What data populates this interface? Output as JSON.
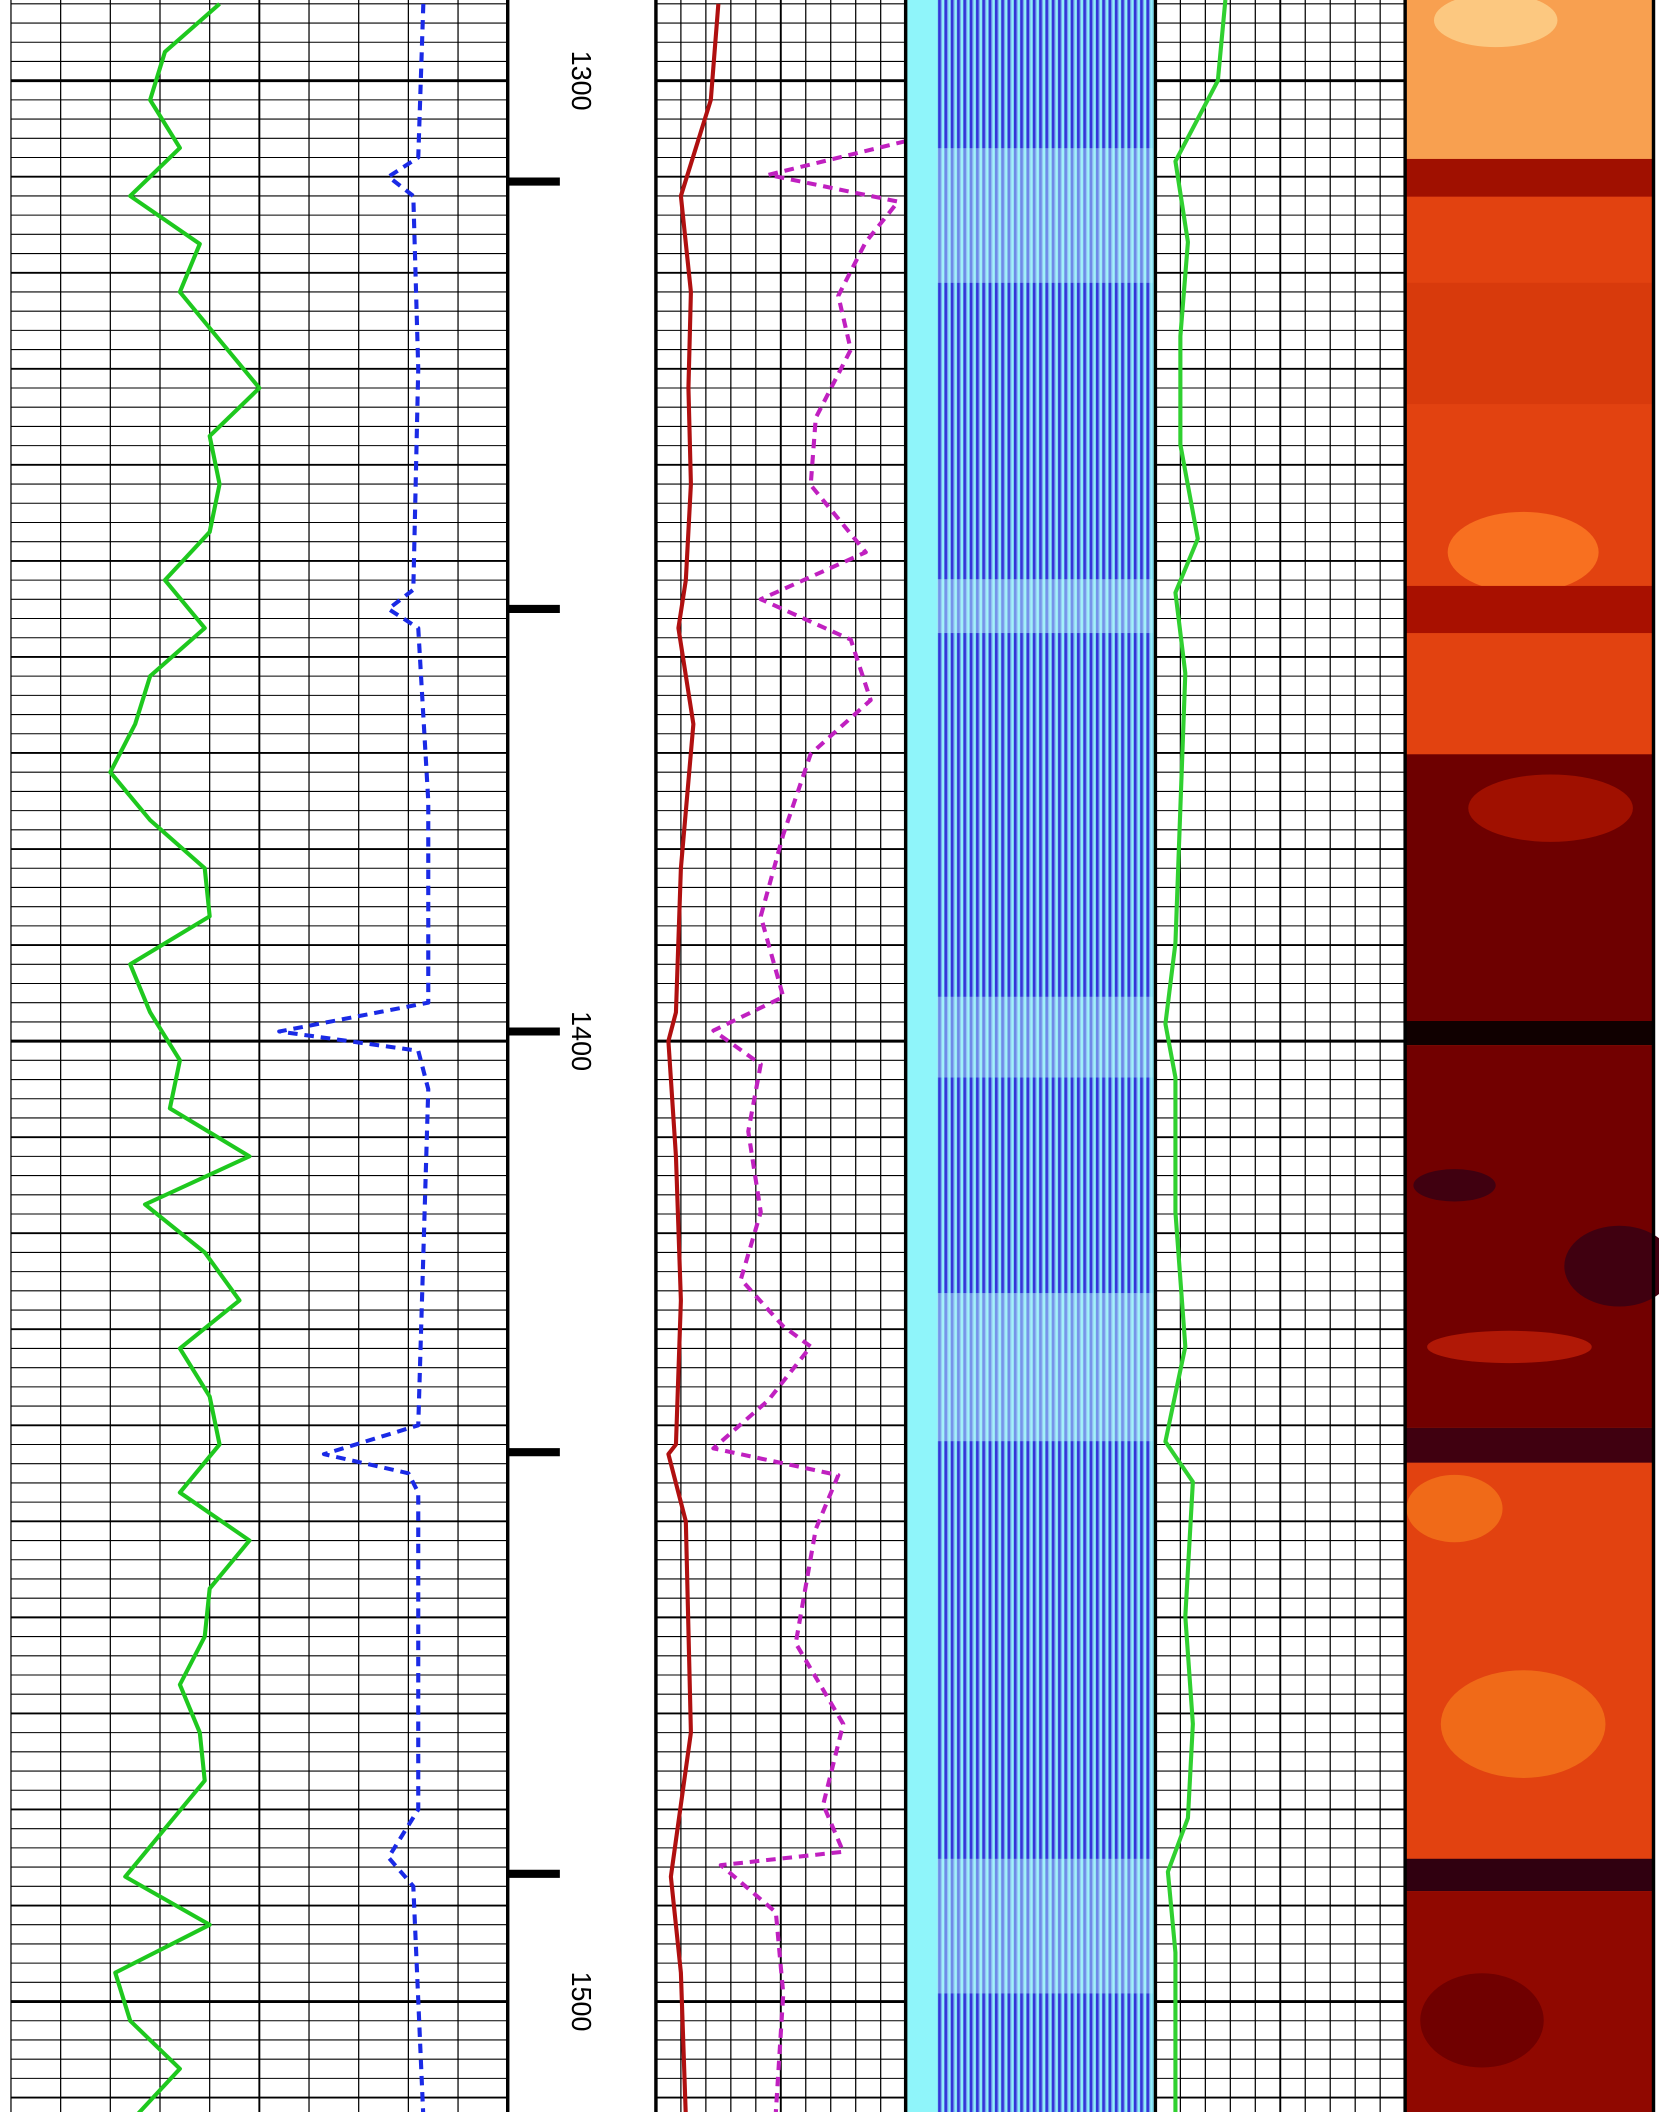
{
  "chart_data": {
    "type": "well-log",
    "ylim": [
      1291.6,
      1511.5
    ],
    "yticks": [
      1300,
      1400,
      1500
    ],
    "xlim": [
      0,
      100
    ],
    "grid": true,
    "markers": [
      1310.5,
      1355,
      1399,
      1442.8,
      1486.7
    ],
    "series": [
      {
        "track": 0,
        "color": "#1ec81e",
        "dashed": false,
        "depth": [
          1292,
          1297,
          1302,
          1307,
          1312,
          1317,
          1322,
          1327,
          1332,
          1337,
          1342,
          1347,
          1352,
          1357,
          1362,
          1367,
          1372,
          1377,
          1382,
          1387,
          1392,
          1397,
          1402,
          1407,
          1412,
          1417,
          1422,
          1427,
          1432,
          1437,
          1442,
          1447,
          1452,
          1457,
          1462,
          1467,
          1472,
          1477,
          1482,
          1487,
          1492,
          1497,
          1502,
          1507,
          1512
        ],
        "values": [
          42,
          31,
          28,
          34,
          24,
          38,
          34,
          42,
          50,
          40,
          42,
          40,
          31,
          39,
          28,
          25,
          20,
          28,
          39,
          40,
          24,
          28,
          34,
          32,
          48,
          27,
          39,
          46,
          34,
          40,
          42,
          34,
          48,
          40,
          39,
          34,
          38,
          39,
          31,
          23,
          40,
          21,
          24,
          34,
          25
        ]
      },
      {
        "track": 0,
        "color": "#1a2ae6",
        "dashed": true,
        "depth": [
          1292,
          1308,
          1310,
          1312,
          1330,
          1353,
          1355,
          1357,
          1375,
          1396,
          1399,
          1401,
          1405,
          1440,
          1443,
          1445,
          1447,
          1480,
          1485,
          1488,
          1512
        ],
        "values": [
          83,
          82,
          76,
          81,
          82,
          81,
          76,
          82,
          84,
          84,
          54,
          82,
          84,
          82,
          63,
          80,
          82,
          82,
          76,
          81,
          83
        ]
      },
      {
        "track": 1,
        "color": "#b01010",
        "dashed": false,
        "depth": [
          1292,
          1302,
          1312,
          1322,
          1332,
          1342,
          1352,
          1357,
          1367,
          1382,
          1397,
          1400,
          1412,
          1427,
          1442,
          1443,
          1450,
          1472,
          1487,
          1497,
          1512
        ],
        "values": [
          25,
          22,
          10,
          14,
          13,
          14,
          12,
          9,
          15,
          10,
          8,
          5,
          8,
          10,
          8,
          5,
          12,
          14,
          6,
          10,
          12
        ]
      },
      {
        "track": 1,
        "color": "#c020c0",
        "dashed": true,
        "depth": [
          1306.3,
          1309.8,
          1312.6,
          1316.8,
          1322.4,
          1328,
          1335.1,
          1342.1,
          1349.1,
          1354,
          1358.2,
          1364.5,
          1370.1,
          1378.5,
          1387,
          1395.4,
          1398.9,
          1402.4,
          1409.4,
          1417.8,
          1424.8,
          1429.7,
          1431.8,
          1437.4,
          1442.4,
          1445.2,
          1450.8,
          1462.7,
          1471.1,
          1479.5,
          1484.4,
          1485.8,
          1490.7,
          1499.2,
          1511.5
        ],
        "values": [
          100,
          45,
          97,
          84,
          73,
          78,
          64,
          62,
          84,
          42,
          78,
          86,
          62,
          51,
          42,
          51,
          23,
          42,
          37,
          42,
          34,
          51,
          62,
          45,
          23,
          73,
          64,
          56,
          75,
          67,
          75,
          26,
          48,
          51,
          48
        ]
      },
      {
        "track": 2,
        "color": "#30d030",
        "dashed": false,
        "depth": [
          1291.6,
          1300,
          1308.4,
          1316.8,
          1326.6,
          1337.9,
          1347.7,
          1353.3,
          1361.7,
          1375.7,
          1389.8,
          1398.2,
          1403.8,
          1417.8,
          1431.8,
          1441.7,
          1445.9,
          1459.9,
          1471.1,
          1480.9,
          1486.5,
          1494.9,
          1511.5
        ],
        "values": [
          28,
          25,
          8,
          13,
          10,
          10,
          17,
          8,
          12,
          10,
          8,
          4,
          8,
          8,
          12,
          4,
          15,
          12,
          15,
          13,
          5,
          8,
          8
        ]
      }
    ]
  }
}
